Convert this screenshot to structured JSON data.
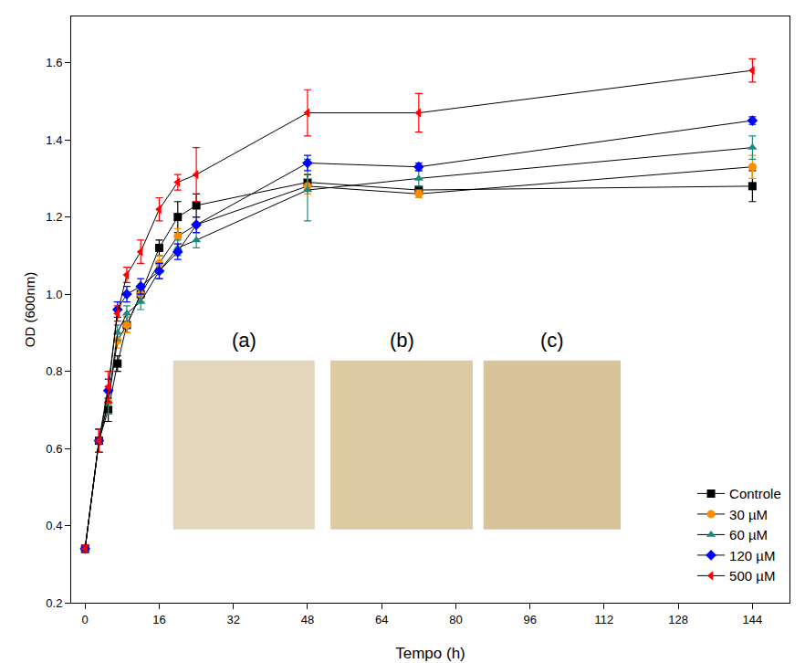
{
  "chart_data": {
    "type": "line",
    "x_label": "Tempo (h)",
    "y_label": "OD (600nm)",
    "x": [
      0,
      3,
      5,
      7,
      9,
      12,
      16,
      20,
      24,
      48,
      72,
      144
    ],
    "series": [
      {
        "name": "Controle",
        "color": "#000000",
        "marker": "square",
        "values": [
          0.34,
          0.62,
          0.7,
          0.82,
          0.92,
          1.0,
          1.12,
          1.2,
          1.23,
          1.29,
          1.27,
          1.28
        ],
        "errors": [
          0.01,
          0.03,
          0.03,
          0.02,
          0.02,
          0.02,
          0.02,
          0.04,
          0.03,
          0.02,
          0.01,
          0.04
        ]
      },
      {
        "name": "30 µM",
        "color": "#ff8c00",
        "marker": "circle",
        "values": [
          0.34,
          0.62,
          0.72,
          0.88,
          0.92,
          1.0,
          1.08,
          1.15,
          1.18,
          1.28,
          1.26,
          1.33
        ],
        "errors": [
          0.01,
          0.03,
          0.03,
          0.02,
          0.02,
          0.02,
          0.02,
          0.02,
          0.02,
          0.02,
          0.01,
          0.03
        ]
      },
      {
        "name": "60 µM",
        "color": "#1a8a80",
        "marker": "triangle-up",
        "values": [
          0.34,
          0.62,
          0.72,
          0.9,
          0.95,
          0.98,
          1.06,
          1.12,
          1.14,
          1.27,
          1.3,
          1.38
        ],
        "errors": [
          0.01,
          0.03,
          0.03,
          0.02,
          0.02,
          0.02,
          0.02,
          0.02,
          0.02,
          0.08,
          0.02,
          0.03
        ]
      },
      {
        "name": "120 µM",
        "color": "#0000ff",
        "marker": "diamond",
        "values": [
          0.34,
          0.62,
          0.75,
          0.96,
          1.0,
          1.02,
          1.06,
          1.11,
          1.18,
          1.34,
          1.33,
          1.45
        ],
        "errors": [
          0.01,
          0.03,
          0.03,
          0.02,
          0.02,
          0.02,
          0.02,
          0.02,
          0.02,
          0.02,
          0.01,
          0.01
        ]
      },
      {
        "name": "500 µM",
        "color": "#ff0000",
        "marker": "triangle-left",
        "values": [
          0.34,
          0.62,
          0.76,
          0.95,
          1.05,
          1.11,
          1.22,
          1.29,
          1.31,
          1.47,
          1.47,
          1.58
        ],
        "errors": [
          0.01,
          0.03,
          0.04,
          0.02,
          0.02,
          0.03,
          0.03,
          0.02,
          0.07,
          0.06,
          0.05,
          0.03
        ]
      }
    ],
    "xlim": [
      -3,
      152
    ],
    "xticks": [
      0,
      16,
      32,
      48,
      64,
      80,
      96,
      112,
      128,
      144
    ],
    "ylim": [
      0.2,
      1.72
    ],
    "yticks": [
      0.2,
      0.4,
      0.6,
      0.8,
      {
        "value": 1,
        "label": "1.0"
      },
      1.2,
      1.4,
      1.6
    ],
    "annotations": [
      "(a)",
      "(b)",
      "(c)"
    ],
    "grid": false,
    "legend": "lower right"
  }
}
